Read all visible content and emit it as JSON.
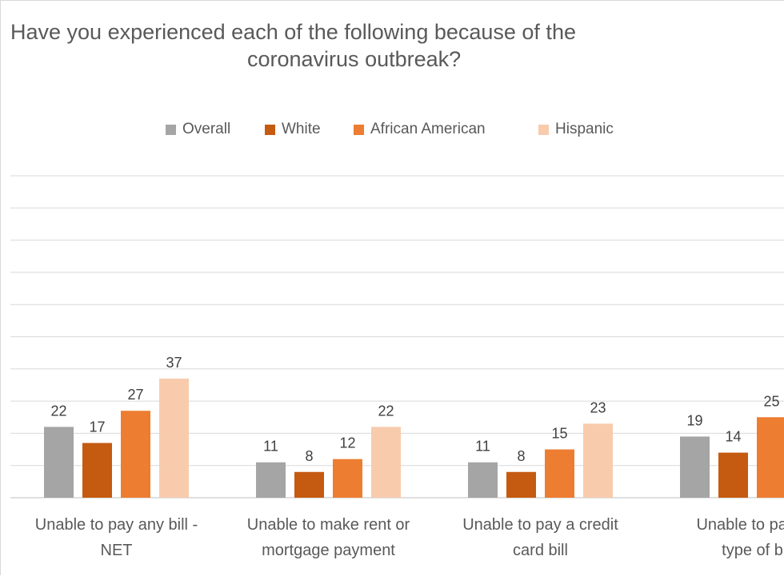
{
  "chart_data": {
    "type": "bar",
    "title": "Have you experienced each of the following because of the coronavirus outbreak?",
    "categories": [
      [
        "Unable to pay any bill -",
        "NET"
      ],
      [
        "Unable to make rent or",
        "mortgage payment"
      ],
      [
        "Unable to pay a credit",
        "card bill"
      ],
      [
        "Unable to pay a",
        "type of b"
      ]
    ],
    "series": [
      {
        "name": "Overall",
        "color": "#a5a5a5",
        "values": [
          22,
          11,
          11,
          19
        ]
      },
      {
        "name": "White",
        "color": "#c55a11",
        "values": [
          17,
          8,
          8,
          14
        ]
      },
      {
        "name": "African American",
        "color": "#ed7d31",
        "values": [
          27,
          12,
          15,
          25
        ]
      },
      {
        "name": "Hispanic",
        "color": "#f8cbad",
        "values": [
          37,
          22,
          23,
          null
        ]
      }
    ],
    "ylim": [
      0,
      100
    ],
    "grid": true,
    "legend_position": "top"
  }
}
